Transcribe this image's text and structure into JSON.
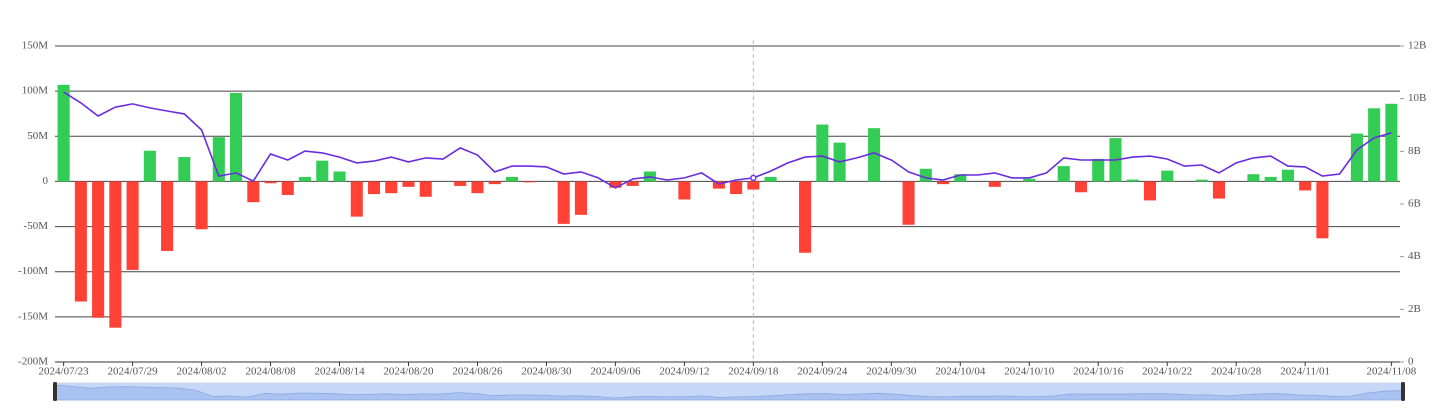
{
  "chart_data": {
    "type": "bar-line",
    "categories": [
      "2024/07/23",
      null,
      null,
      null,
      "2024/07/29",
      null,
      null,
      null,
      "2024/08/02",
      null,
      null,
      null,
      "2024/08/08",
      null,
      null,
      null,
      "2024/08/14",
      null,
      null,
      null,
      "2024/08/20",
      null,
      null,
      null,
      "2024/08/26",
      null,
      null,
      null,
      "2024/08/30",
      null,
      null,
      null,
      "2024/09/06",
      null,
      null,
      null,
      "2024/09/12",
      null,
      null,
      null,
      "2024/09/18",
      null,
      null,
      null,
      "2024/09/24",
      null,
      null,
      null,
      "2024/09/30",
      null,
      null,
      null,
      "2024/10/04",
      null,
      null,
      null,
      "2024/10/10",
      null,
      null,
      null,
      "2024/10/16",
      null,
      null,
      null,
      "2024/10/22",
      null,
      null,
      null,
      "2024/10/28",
      null,
      null,
      null,
      "2024/11/01",
      null,
      null,
      null,
      null,
      "2024/11/08"
    ],
    "series": [
      {
        "type": "bar",
        "positive_color": "#33cc55",
        "negative_color": "#ff4136",
        "values": [
          107,
          -133,
          -151,
          -162,
          -98,
          34,
          -77,
          27,
          -53,
          49,
          98,
          -23,
          -2,
          -15,
          5,
          23,
          11,
          -39,
          -14,
          -13,
          -6,
          -17,
          0,
          -5,
          -13,
          -3,
          5,
          -1,
          0,
          -47,
          -37,
          0,
          -7,
          -5,
          11,
          0,
          -20,
          0,
          -8,
          -14,
          -9,
          5,
          0,
          -79,
          63,
          43,
          0,
          59,
          0,
          -48,
          14,
          -3,
          8,
          0,
          -6,
          0,
          3,
          0,
          17,
          -12,
          25,
          48,
          2,
          -21,
          12,
          0,
          2,
          -19,
          0,
          8,
          5,
          13,
          -10,
          -63,
          0,
          53,
          81,
          86
        ]
      },
      {
        "type": "line",
        "axis": "y2",
        "color": "#6a2ce0",
        "values": [
          10.25,
          9.84,
          9.34,
          9.68,
          9.8,
          9.65,
          9.53,
          9.42,
          8.81,
          7.06,
          7.18,
          6.87,
          7.9,
          7.67,
          8.01,
          7.94,
          7.78,
          7.56,
          7.63,
          7.78,
          7.6,
          7.75,
          7.71,
          8.13,
          7.86,
          7.22,
          7.44,
          7.44,
          7.41,
          7.14,
          7.22,
          6.99,
          6.61,
          6.95,
          7.03,
          6.91,
          6.99,
          7.18,
          6.76,
          6.91,
          6.99,
          7.25,
          7.56,
          7.78,
          7.82,
          7.6,
          7.75,
          7.94,
          7.67,
          7.22,
          6.99,
          6.91,
          7.1,
          7.1,
          7.18,
          6.99,
          6.99,
          7.18,
          7.75,
          7.67,
          7.67,
          7.67,
          7.78,
          7.82,
          7.71,
          7.44,
          7.48,
          7.18,
          7.56,
          7.75,
          7.82,
          7.44,
          7.41,
          7.06,
          7.14,
          8.05,
          8.51,
          8.7
        ]
      }
    ],
    "ylim": [
      -200,
      150
    ],
    "yticks": [
      {
        "value": -200,
        "label": "-200M"
      },
      {
        "value": -150,
        "label": "-150M"
      },
      {
        "value": -100,
        "label": "-100M"
      },
      {
        "value": -50,
        "label": "-50M"
      },
      0,
      {
        "value": 50,
        "label": "50M"
      },
      {
        "value": 100,
        "label": "100M"
      },
      {
        "value": 150,
        "label": "150M"
      }
    ],
    "y2lim": [
      0,
      12
    ],
    "y2ticks": [
      0,
      {
        "value": 2,
        "label": "2B"
      },
      {
        "value": 4,
        "label": "4B"
      },
      {
        "value": 6,
        "label": "6B"
      },
      {
        "value": 8,
        "label": "8B"
      },
      {
        "value": 10,
        "label": "10B"
      },
      {
        "value": 12,
        "label": "12B"
      }
    ],
    "grid": true
  }
}
